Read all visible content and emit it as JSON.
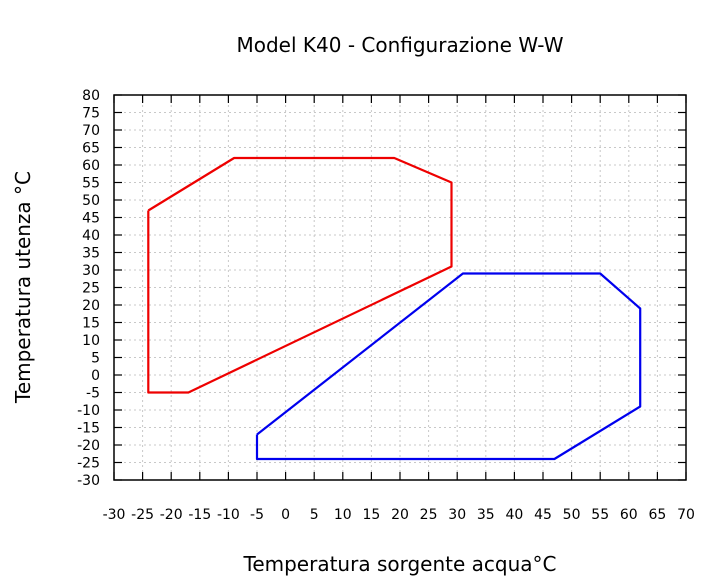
{
  "chart_data": {
    "type": "line",
    "title": "Model K40 - Configurazione W-W",
    "xlabel": "Temperatura sorgente acqua°C",
    "ylabel": "Temperatura utenza °C",
    "xlim": [
      -30,
      70
    ],
    "ylim": [
      -30,
      80
    ],
    "xticks": [
      -30,
      -25,
      -20,
      -15,
      -10,
      -5,
      0,
      5,
      10,
      15,
      20,
      25,
      30,
      35,
      40,
      45,
      50,
      55,
      60,
      65,
      70
    ],
    "yticks": [
      -30,
      -25,
      -20,
      -15,
      -10,
      -5,
      0,
      5,
      10,
      15,
      20,
      25,
      30,
      35,
      40,
      45,
      50,
      55,
      60,
      65,
      70,
      75,
      80
    ],
    "grid": true,
    "series": [
      {
        "color": "#ee0000",
        "points": [
          [
            -24,
            47
          ],
          [
            -9,
            62
          ],
          [
            19,
            62
          ],
          [
            29,
            55
          ],
          [
            29,
            31
          ],
          [
            -17,
            -5
          ],
          [
            -24,
            -5
          ],
          [
            -24,
            47
          ]
        ]
      },
      {
        "color": "#0000ee",
        "points": [
          [
            -5,
            -17
          ],
          [
            31,
            29
          ],
          [
            55,
            29
          ],
          [
            62,
            19
          ],
          [
            62,
            -9
          ],
          [
            47,
            -24
          ],
          [
            -5,
            -24
          ],
          [
            -5,
            -17
          ]
        ]
      }
    ]
  }
}
